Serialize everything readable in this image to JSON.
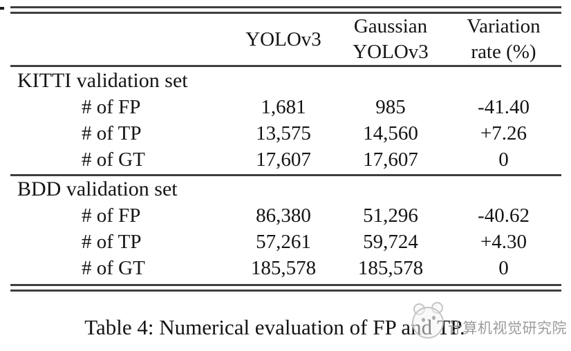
{
  "header": {
    "yolov3": "YOLOv3",
    "gaussian_line1": "Gaussian",
    "gaussian_line2": "YOLOv3",
    "variation_line1": "Variation",
    "variation_line2": "rate (%)"
  },
  "sections": [
    {
      "title": "KITTI validation set",
      "rows": [
        {
          "label": "# of FP",
          "yolov3": "1,681",
          "gaussian": "985",
          "variation": "-41.40"
        },
        {
          "label": "# of TP",
          "yolov3": "13,575",
          "gaussian": "14,560",
          "variation": "+7.26"
        },
        {
          "label": "# of GT",
          "yolov3": "17,607",
          "gaussian": "17,607",
          "variation": "0"
        }
      ]
    },
    {
      "title": "BDD validation set",
      "rows": [
        {
          "label": "# of FP",
          "yolov3": "86,380",
          "gaussian": "51,296",
          "variation": "-40.62"
        },
        {
          "label": "# of TP",
          "yolov3": "57,261",
          "gaussian": "59,724",
          "variation": "+4.30"
        },
        {
          "label": "# of GT",
          "yolov3": "185,578",
          "gaussian": "185,578",
          "variation": "0"
        }
      ]
    }
  ],
  "caption": "Table 4: Numerical evaluation of FP and TP.",
  "watermark": {
    "text": "计算机视觉研究院",
    "logo": "panda-mascot-logo",
    "text_color": "#969696"
  },
  "colors": {
    "rule": "#3e3e3e",
    "text": "#141414",
    "background": "#ffffff"
  },
  "chart_data": {
    "type": "table",
    "title": "Table 4: Numerical evaluation of FP and TP.",
    "columns": [
      "",
      "YOLOv3",
      "Gaussian YOLOv3",
      "Variation rate (%)"
    ],
    "sections": [
      {
        "group": "KITTI validation set",
        "rows": [
          [
            "# of FP",
            1681,
            985,
            -41.4
          ],
          [
            "# of TP",
            13575,
            14560,
            7.26
          ],
          [
            "# of GT",
            17607,
            17607,
            0
          ]
        ]
      },
      {
        "group": "BDD validation set",
        "rows": [
          [
            "# of FP",
            86380,
            51296,
            -40.62
          ],
          [
            "# of TP",
            57261,
            59724,
            4.3
          ],
          [
            "# of GT",
            185578,
            185578,
            0
          ]
        ]
      }
    ]
  }
}
